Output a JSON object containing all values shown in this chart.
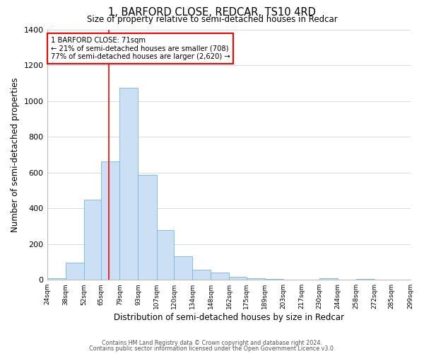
{
  "title": "1, BARFORD CLOSE, REDCAR, TS10 4RD",
  "subtitle": "Size of property relative to semi-detached houses in Redcar",
  "xlabel": "Distribution of semi-detached houses by size in Redcar",
  "ylabel": "Number of semi-detached properties",
  "bar_edges": [
    24,
    38,
    52,
    65,
    79,
    93,
    107,
    120,
    134,
    148,
    162,
    175,
    189,
    203,
    217,
    230,
    244,
    258,
    272,
    285,
    299
  ],
  "bar_heights": [
    10,
    95,
    450,
    660,
    1075,
    585,
    278,
    130,
    55,
    42,
    18,
    8,
    3,
    0,
    0,
    7,
    0,
    3,
    0,
    0
  ],
  "bar_color": "#cce0f5",
  "bar_edgecolor": "#7ab4e0",
  "property_line_x": 71,
  "annotation_line1": "1 BARFORD CLOSE: 71sqm",
  "annotation_line2": "← 21% of semi-detached houses are smaller (708)",
  "annotation_line3": "77% of semi-detached houses are larger (2,620) →",
  "ylim": [
    0,
    1400
  ],
  "yticks": [
    0,
    200,
    400,
    600,
    800,
    1000,
    1200,
    1400
  ],
  "tick_labels": [
    "24sqm",
    "38sqm",
    "52sqm",
    "65sqm",
    "79sqm",
    "93sqm",
    "107sqm",
    "120sqm",
    "134sqm",
    "148sqm",
    "162sqm",
    "175sqm",
    "189sqm",
    "203sqm",
    "217sqm",
    "230sqm",
    "244sqm",
    "258sqm",
    "272sqm",
    "285sqm",
    "299sqm"
  ],
  "footer1": "Contains HM Land Registry data © Crown copyright and database right 2024.",
  "footer2": "Contains public sector information licensed under the Open Government Licence v3.0.",
  "background_color": "#ffffff",
  "grid_color": "#d0dde8"
}
